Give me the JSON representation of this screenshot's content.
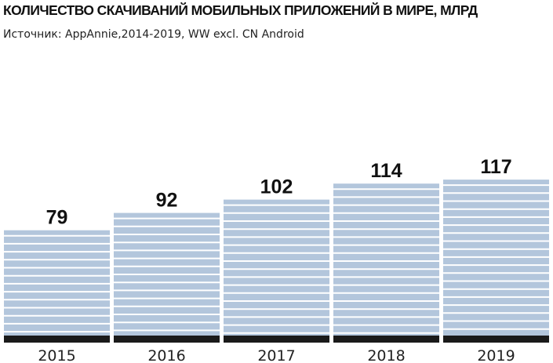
{
  "chart_data": {
    "type": "bar",
    "title": "КОЛИЧЕСТВО СКАЧИВАНИЙ МОБИЛЬНЫХ ПРИЛОЖЕНИЙ В МИРЕ, МЛРД",
    "subtitle": "Источник: AppAnnie,2014-2019, WW excl. CN Android",
    "categories": [
      "2015",
      "2016",
      "2017",
      "2018",
      "2019"
    ],
    "values": [
      79,
      92,
      102,
      114,
      117
    ],
    "data_labels": [
      "79",
      "92",
      "102",
      "114",
      "117"
    ],
    "xlabel": "",
    "ylabel": "",
    "grid": false,
    "bar_color": "#b3c6dc",
    "stripe_color": "#ffffff",
    "axis_color": "#1a1a1a"
  }
}
